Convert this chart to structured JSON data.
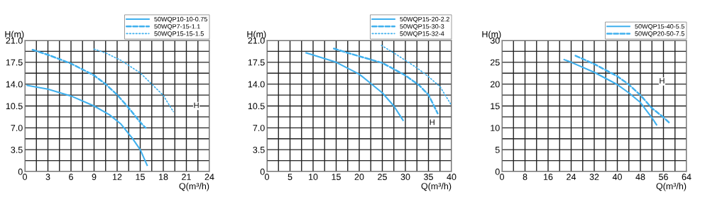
{
  "chart_data": [
    {
      "type": "line",
      "xlabel": "Q(m³/h)",
      "ylabel": "H(m)",
      "xlim": [
        0,
        24
      ],
      "ylim": [
        0,
        21
      ],
      "xticks": [
        0,
        {
          "value": 1.5,
          "label": null
        },
        3,
        {
          "value": 4.5,
          "label": null
        },
        6,
        {
          "value": 7.5,
          "label": null
        },
        9,
        {
          "value": 10.5,
          "label": null
        },
        12,
        {
          "value": 13.5,
          "label": null
        },
        15,
        {
          "value": 16.5,
          "label": null
        },
        18,
        {
          "value": 19.5,
          "label": null
        },
        21,
        {
          "value": 22.5,
          "label": null
        },
        24
      ],
      "yticks": [
        0,
        {
          "value": 1.75,
          "label": null
        },
        {
          "value": 3.5,
          "label": "3.5"
        },
        {
          "value": 5.25,
          "label": null
        },
        {
          "value": 7,
          "label": "7.0"
        },
        {
          "value": 8.75,
          "label": null
        },
        {
          "value": 10.5,
          "label": "10.5"
        },
        {
          "value": 12.25,
          "label": null
        },
        {
          "value": 14,
          "label": "14.0"
        },
        {
          "value": 15.75,
          "label": null
        },
        {
          "value": 17.5,
          "label": "17.5"
        },
        {
          "value": 19.25,
          "label": null
        },
        {
          "value": 21,
          "label": "21.0"
        }
      ],
      "grid": true,
      "legend": "top right",
      "series": [
        {
          "name": "50WQP10-10-0.75",
          "color": "#3fb0ee",
          "line_style": "solid",
          "x": [
            0.3,
            3,
            6,
            9,
            11,
            12.5,
            14,
            15,
            15.9
          ],
          "values": [
            13.8,
            13.2,
            12.1,
            10.5,
            9.1,
            7.6,
            5.3,
            3.5,
            1.0
          ]
        },
        {
          "name": "50WQP7-15-1.1",
          "color": "#3fb0ee",
          "line_style": "dashed",
          "x": [
            1,
            3,
            6,
            9,
            10.5,
            12,
            13.5,
            15,
            15.7
          ],
          "values": [
            19.5,
            18.7,
            17.3,
            15.4,
            14.0,
            12.3,
            10.2,
            7.9,
            7.0
          ]
        },
        {
          "name": "50WQP15-15-1.5",
          "color": "#3fb0ee",
          "line_style": "dotted",
          "x": [
            9,
            10.5,
            12.5,
            15,
            16.5,
            18,
            19.3
          ],
          "values": [
            19.6,
            19.0,
            17.8,
            15.8,
            14.0,
            12.2,
            9.6
          ]
        }
      ],
      "annotations": [
        {
          "text": "H",
          "x": 22.3,
          "y": 10.5
        }
      ]
    },
    {
      "type": "line",
      "xlabel": "Q(m³/h)",
      "ylabel": "H(m)",
      "xlim": [
        0,
        40
      ],
      "ylim": [
        0,
        21
      ],
      "xticks": [
        0,
        {
          "value": 2.5,
          "label": null
        },
        5,
        {
          "value": 7.5,
          "label": null
        },
        10,
        {
          "value": 12.5,
          "label": null
        },
        15,
        {
          "value": 17.5,
          "label": null
        },
        20,
        {
          "value": 22.5,
          "label": null
        },
        25,
        {
          "value": 27.5,
          "label": null
        },
        30,
        {
          "value": 32.5,
          "label": null
        },
        35,
        {
          "value": 37.5,
          "label": null
        },
        40
      ],
      "yticks": [
        0,
        {
          "value": 1.75,
          "label": null
        },
        {
          "value": 3.5,
          "label": "3.5"
        },
        {
          "value": 5.25,
          "label": null
        },
        {
          "value": 7,
          "label": "7.0"
        },
        {
          "value": 8.75,
          "label": null
        },
        {
          "value": 10.5,
          "label": "10.5"
        },
        {
          "value": 12.25,
          "label": null
        },
        {
          "value": 14,
          "label": "14.0"
        },
        {
          "value": 15.75,
          "label": null
        },
        {
          "value": 17.5,
          "label": "17.5"
        },
        {
          "value": 19.25,
          "label": null
        },
        {
          "value": 21,
          "label": "21.0"
        }
      ],
      "grid": true,
      "legend": "top right",
      "series": [
        {
          "name": "50WQP15-20-2.2",
          "color": "#3fb0ee",
          "line_style": "solid",
          "x": [
            8.5,
            15,
            20,
            22.5,
            25,
            27.5,
            29.5
          ],
          "values": [
            19.0,
            17.5,
            15.6,
            14.1,
            12.6,
            10.5,
            8.2
          ]
        },
        {
          "name": "50WQP15-30-3",
          "color": "#3fb0ee",
          "line_style": "dashed",
          "x": [
            14.5,
            17.5,
            25,
            30,
            33,
            35,
            37
          ],
          "values": [
            19.7,
            19.0,
            17.4,
            15.4,
            13.8,
            12.3,
            9.3
          ]
        },
        {
          "name": "50WQP15-32-4",
          "color": "#3fb0ee",
          "line_style": "dotted",
          "x": [
            24.8,
            27.5,
            32.5,
            35,
            37.5,
            40
          ],
          "values": [
            20.2,
            19.0,
            16.6,
            15.2,
            13.6,
            10.6
          ]
        }
      ],
      "annotations": [
        {
          "text": "H",
          "x": 35.8,
          "y": 7.8
        }
      ]
    },
    {
      "type": "line",
      "xlabel": "Q(m³/h)",
      "ylabel": "H(m)",
      "xlim": [
        0,
        64
      ],
      "ylim": [
        0,
        30
      ],
      "xticks": [
        0,
        {
          "value": 4,
          "label": null
        },
        8,
        {
          "value": 12,
          "label": null
        },
        16,
        {
          "value": 20,
          "label": null
        },
        24,
        {
          "value": 28,
          "label": null
        },
        32,
        {
          "value": 36,
          "label": null
        },
        40,
        {
          "value": 44,
          "label": null
        },
        48,
        {
          "value": 52,
          "label": null
        },
        56,
        {
          "value": 60,
          "label": null
        },
        64
      ],
      "yticks": [
        0,
        {
          "value": 2.5,
          "label": null
        },
        5,
        {
          "value": 7.5,
          "label": null
        },
        10,
        {
          "value": 12.5,
          "label": null
        },
        15,
        {
          "value": 17.5,
          "label": null
        },
        20,
        {
          "value": 22.5,
          "label": null
        },
        25,
        {
          "value": 27.5,
          "label": null
        },
        30
      ],
      "grid": true,
      "legend": "top right",
      "series": [
        {
          "name": "50WQP15-40-5.5",
          "color": "#3fb0ee",
          "line_style": "solid",
          "x": [
            21.6,
            24,
            32,
            40,
            44,
            48,
            52,
            53.6
          ],
          "values": [
            25.6,
            25.0,
            22.7,
            19.9,
            18.0,
            15.8,
            12.3,
            10.7
          ]
        },
        {
          "name": "50WQP20-50-7.5",
          "color": "#3fb0ee",
          "line_style": "dashed",
          "x": [
            25.5,
            32,
            40,
            44,
            48,
            52,
            56,
            58.3
          ],
          "values": [
            26.5,
            24.6,
            21.8,
            19.9,
            17.5,
            14.5,
            12.4,
            11.0
          ]
        }
      ],
      "annotations": [
        {
          "text": "H",
          "x": 55.5,
          "y": 20.6
        }
      ]
    }
  ]
}
